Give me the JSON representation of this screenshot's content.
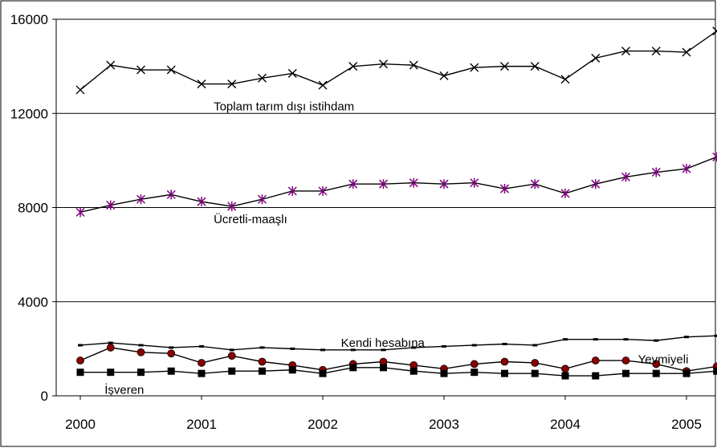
{
  "chart_data": {
    "type": "line",
    "title": "",
    "xlabel": "",
    "ylabel": "",
    "ylim": [
      0,
      16000
    ],
    "xlim": [
      2000,
      2005.25
    ],
    "grid": true,
    "y_ticks": [
      "0",
      "4000",
      "8000",
      "12000",
      "16000"
    ],
    "x_ticks": [
      "2000",
      "2001",
      "2002",
      "2003",
      "2004",
      "2005"
    ],
    "x": [
      2000,
      2000.25,
      2000.5,
      2000.75,
      2001,
      2001.25,
      2001.5,
      2001.75,
      2002,
      2002.25,
      2002.5,
      2002.75,
      2003,
      2003.25,
      2003.5,
      2003.75,
      2004,
      2004.25,
      2004.5,
      2004.75,
      2005,
      2005.25
    ],
    "series": [
      {
        "name": "Toplam tarım dışı istihdam",
        "marker": "x",
        "color": "#000000",
        "values": [
          13000,
          14050,
          13850,
          13850,
          13250,
          13250,
          13500,
          13700,
          13200,
          14000,
          14100,
          14050,
          13600,
          13950,
          14000,
          14000,
          13450,
          14350,
          14650,
          14650,
          14600,
          15500
        ]
      },
      {
        "name": "Ücretli-maaşlı",
        "marker": "asterisk",
        "color": "#800080",
        "values": [
          7800,
          8100,
          8350,
          8550,
          8250,
          8050,
          8350,
          8700,
          8700,
          9000,
          9000,
          9050,
          9000,
          9050,
          8800,
          9000,
          8600,
          9000,
          9300,
          9500,
          9650,
          10150
        ]
      },
      {
        "name": "Kendi hesabına",
        "marker": "dash",
        "color": "#000000",
        "values": [
          2150,
          2250,
          2150,
          2050,
          2100,
          1950,
          2050,
          2000,
          1950,
          1950,
          1950,
          2050,
          2100,
          2150,
          2200,
          2150,
          2400,
          2400,
          2400,
          2350,
          2500,
          2550
        ]
      },
      {
        "name": "Yevmiyeli",
        "marker": "circle",
        "color": "#8b0000",
        "values": [
          1500,
          2050,
          1850,
          1800,
          1400,
          1700,
          1450,
          1300,
          1100,
          1350,
          1450,
          1300,
          1150,
          1350,
          1450,
          1400,
          1150,
          1500,
          1500,
          1350,
          1050,
          1250
        ]
      },
      {
        "name": "İşveren",
        "marker": "square",
        "color": "#000000",
        "values": [
          1000,
          1000,
          1000,
          1050,
          950,
          1050,
          1050,
          1100,
          950,
          1200,
          1200,
          1050,
          950,
          1000,
          950,
          950,
          850,
          850,
          950,
          950,
          950,
          1050
        ]
      }
    ],
    "annotations": [
      {
        "text": "Toplam tarım dışı istihdam",
        "x": 2001.1,
        "y": 12300
      },
      {
        "text": "Ücretli-maaşlı",
        "x": 2001.1,
        "y": 7500
      },
      {
        "text": "Kendi hesabına",
        "x": 2002.15,
        "y": 2250
      },
      {
        "text": "Yevmiyeli",
        "x": 2004.6,
        "y": 1550
      },
      {
        "text": "İşveren",
        "x": 2000.2,
        "y": 250
      }
    ]
  }
}
